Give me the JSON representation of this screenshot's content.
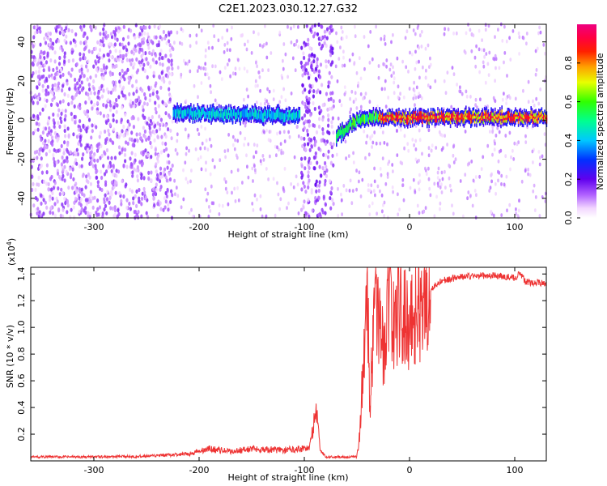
{
  "title": "C2E1.2023.030.12.27.G32",
  "chart_data": [
    {
      "type": "heatmap",
      "xlabel": "Height of straight line (km)",
      "ylabel": "Frequency (Hz)",
      "xlim": [
        -360,
        130
      ],
      "ylim": [
        -50,
        49
      ],
      "xticks": [
        -300,
        -200,
        -100,
        0,
        100
      ],
      "yticks": [
        -40,
        -20,
        0,
        20,
        40
      ],
      "colorbar": {
        "label": "Normalized spectral amplitude",
        "range": [
          0,
          1
        ],
        "ticks": [
          0.0,
          0.2,
          0.4,
          0.6,
          0.8
        ],
        "colormap": "rainbow (white-magenta-purple-blue-cyan-green-yellow-orange-red-pink)"
      },
      "features": [
        {
          "x_range": [
            -360,
            -225
          ],
          "freq_range": [
            -50,
            49
          ],
          "amplitude": 0.1,
          "pattern": "dense noise speckle"
        },
        {
          "x_range": [
            -225,
            -105
          ],
          "freq_center": [
            4,
            3,
            2
          ],
          "amplitude": 0.45,
          "pattern": "narrow band with sparse background"
        },
        {
          "x_range": [
            -103,
            -72
          ],
          "freq_range": [
            -50,
            49
          ],
          "amplitude": 0.12,
          "pattern": "dense noise speckle"
        },
        {
          "x_range": [
            -70,
            -30
          ],
          "freq_center": [
            -8,
            0,
            2
          ],
          "amplitude": 0.6,
          "pattern": "narrow band"
        },
        {
          "x_range": [
            -30,
            130
          ],
          "freq_center": [
            1,
            1.5,
            1.5
          ],
          "amplitude": 0.85,
          "pattern": "narrow band, red core"
        }
      ]
    },
    {
      "type": "line",
      "xlabel": "Height of straight line (km)",
      "ylabel": "SNR (10 * v/v)",
      "y_multiplier": "(x10",
      "y_multiplier_exp": "4",
      "y_multiplier_close": ")",
      "xlim": [
        -360,
        130
      ],
      "ylim": [
        0,
        14500
      ],
      "xticks": [
        -300,
        -200,
        -100,
        0,
        100
      ],
      "yticks": [
        0.2,
        0.4,
        0.6,
        0.8,
        1.0,
        1.2,
        1.4
      ],
      "series_color": "#ee3333",
      "points": [
        [
          -360,
          300
        ],
        [
          -300,
          300
        ],
        [
          -250,
          350
        ],
        [
          -210,
          500
        ],
        [
          -190,
          900
        ],
        [
          -170,
          700
        ],
        [
          -150,
          900
        ],
        [
          -120,
          800
        ],
        [
          -95,
          1000
        ],
        [
          -88,
          4000
        ],
        [
          -85,
          800
        ],
        [
          -80,
          300
        ],
        [
          -50,
          300
        ],
        [
          -47,
          2500
        ],
        [
          -44,
          7000
        ],
        [
          -40,
          13500
        ],
        [
          -38,
          4000
        ],
        [
          -35,
          9000
        ],
        [
          -30,
          12000
        ],
        [
          -25,
          8000
        ],
        [
          -20,
          12500
        ],
        [
          -15,
          10000
        ],
        [
          -10,
          11500
        ],
        [
          -5,
          10500
        ],
        [
          0,
          10800
        ],
        [
          10,
          11500
        ],
        [
          20,
          12800
        ],
        [
          30,
          13500
        ],
        [
          50,
          13800
        ],
        [
          80,
          13900
        ],
        [
          100,
          13700
        ],
        [
          105,
          14100
        ],
        [
          110,
          13400
        ],
        [
          130,
          13300
        ]
      ]
    }
  ]
}
